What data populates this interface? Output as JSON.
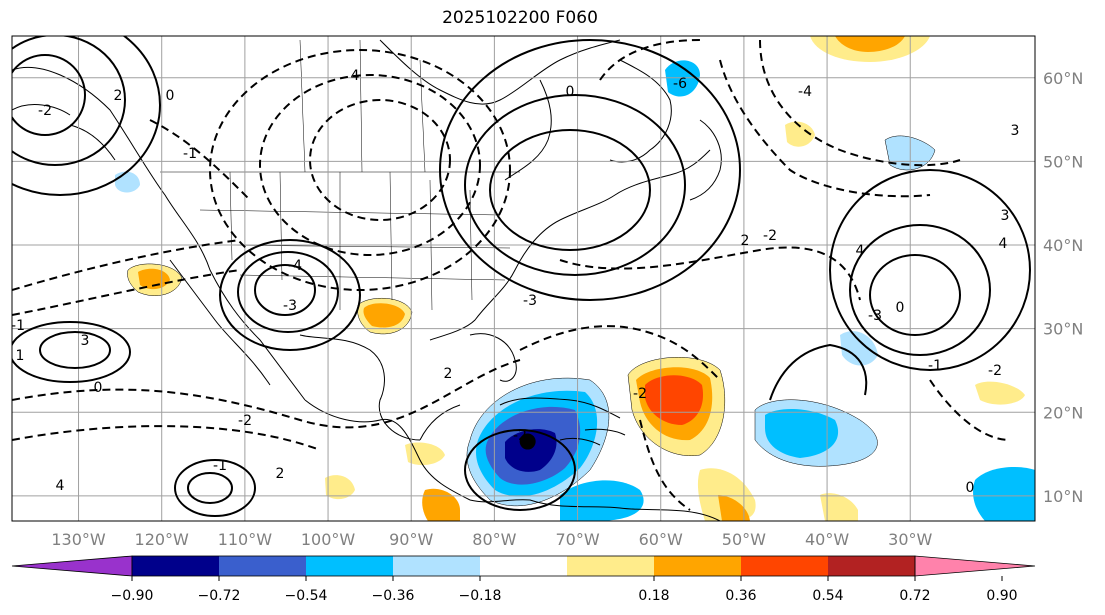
{
  "title": "2025102200 F060",
  "map": {
    "lon_range": [
      -138,
      -15
    ],
    "lat_range": [
      7,
      65
    ],
    "lon_ticks": [
      {
        "value": -130,
        "label": "130°W"
      },
      {
        "value": -120,
        "label": "120°W"
      },
      {
        "value": -110,
        "label": "110°W"
      },
      {
        "value": -100,
        "label": "100°W"
      },
      {
        "value": -90,
        "label": "90°W"
      },
      {
        "value": -80,
        "label": "80°W"
      },
      {
        "value": -70,
        "label": "70°W"
      },
      {
        "value": -60,
        "label": "60°W"
      },
      {
        "value": -50,
        "label": "50°W"
      },
      {
        "value": -40,
        "label": "40°W"
      },
      {
        "value": -30,
        "label": "30°W"
      }
    ],
    "lat_ticks": [
      {
        "value": 60,
        "label": "60°N"
      },
      {
        "value": 50,
        "label": "50°N"
      },
      {
        "value": 40,
        "label": "40°N"
      },
      {
        "value": 30,
        "label": "30°N"
      },
      {
        "value": 20,
        "label": "20°N"
      },
      {
        "value": 10,
        "label": "10°N"
      }
    ],
    "marker": {
      "lon": -76,
      "lat": 16.5
    }
  },
  "colorbar": {
    "colors": [
      "#9932cc",
      "#00008b",
      "#3a5fcd",
      "#00bfff",
      "#b0e2ff",
      "#ffffff",
      "#ffec8b",
      "#ffa500",
      "#ff4500",
      "#b22222",
      "#ff82ab"
    ],
    "tick_labels": [
      "−0.90",
      "−0.72",
      "−0.54",
      "−0.36",
      "−0.18",
      "0.18",
      "0.36",
      "0.54",
      "0.72",
      "0.90"
    ]
  },
  "contour_labels": [
    "4",
    "2",
    "0",
    "-2",
    "-4",
    "-3",
    "-1",
    "1",
    "3",
    "-2",
    "2",
    "0",
    "-1",
    "4",
    "3",
    "-2",
    "-3",
    "4",
    "-2",
    "0",
    "-1",
    "2",
    "-3",
    "-4",
    "0",
    "-6",
    "-2",
    "3",
    "4",
    "-1",
    "0",
    "-2",
    "2"
  ]
}
